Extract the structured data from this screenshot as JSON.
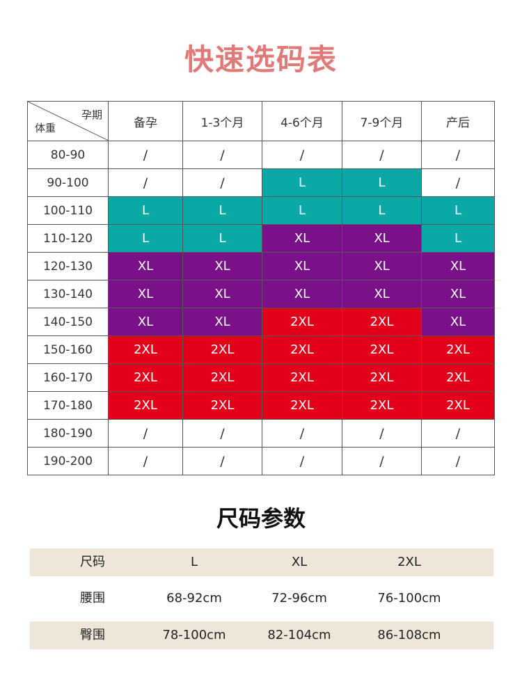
{
  "title": "快速选码表",
  "colors": {
    "L": "#0aa9a6",
    "XL": "#7a1188",
    "2XL": "#e3001b"
  },
  "size_table": {
    "corner_top": "孕期",
    "corner_bottom": "体重",
    "columns": [
      "备孕",
      "1-3个月",
      "4-6个月",
      "7-9个月",
      "产后"
    ],
    "rows": [
      {
        "weight": "80-90",
        "sizes": [
          "/",
          "/",
          "/",
          "/",
          "/"
        ]
      },
      {
        "weight": "90-100",
        "sizes": [
          "/",
          "/",
          "L",
          "L",
          "/"
        ]
      },
      {
        "weight": "100-110",
        "sizes": [
          "L",
          "L",
          "L",
          "L",
          "L"
        ]
      },
      {
        "weight": "110-120",
        "sizes": [
          "L",
          "L",
          "XL",
          "XL",
          "L"
        ]
      },
      {
        "weight": "120-130",
        "sizes": [
          "XL",
          "XL",
          "XL",
          "XL",
          "XL"
        ]
      },
      {
        "weight": "130-140",
        "sizes": [
          "XL",
          "XL",
          "XL",
          "XL",
          "XL"
        ]
      },
      {
        "weight": "140-150",
        "sizes": [
          "XL",
          "XL",
          "2XL",
          "2XL",
          "XL"
        ]
      },
      {
        "weight": "150-160",
        "sizes": [
          "2XL",
          "2XL",
          "2XL",
          "2XL",
          "2XL"
        ]
      },
      {
        "weight": "160-170",
        "sizes": [
          "2XL",
          "2XL",
          "2XL",
          "2XL",
          "2XL"
        ]
      },
      {
        "weight": "170-180",
        "sizes": [
          "2XL",
          "2XL",
          "2XL",
          "2XL",
          "2XL"
        ]
      },
      {
        "weight": "180-190",
        "sizes": [
          "/",
          "/",
          "/",
          "/",
          "/"
        ]
      },
      {
        "weight": "190-200",
        "sizes": [
          "/",
          "/",
          "/",
          "/",
          "/"
        ]
      }
    ]
  },
  "params": {
    "title": "尺码参数",
    "header": [
      "尺码",
      "L",
      "XL",
      "2XL"
    ],
    "rows": [
      [
        "腰围",
        "68-92cm",
        "72-96cm",
        "76-100cm"
      ],
      [
        "臀围",
        "78-100cm",
        "82-104cm",
        "86-108cm"
      ]
    ]
  }
}
